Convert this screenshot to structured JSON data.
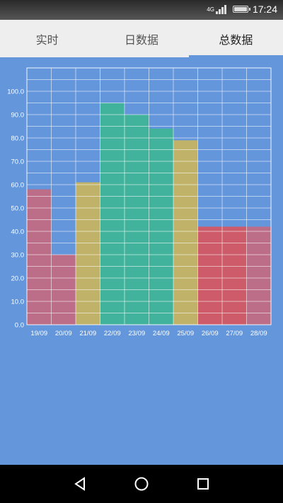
{
  "status": {
    "time": "17:24",
    "network": "4G"
  },
  "tabs": [
    {
      "label": "实时",
      "active": false
    },
    {
      "label": "日数据",
      "active": false
    },
    {
      "label": "总数据",
      "active": true
    }
  ],
  "colors": {
    "background": "#6496DC",
    "tab_bg": "#eeeeee",
    "grid": "#ffffff",
    "red": "#D36367",
    "yellow": "#C8B55E",
    "green": "#3EB495"
  },
  "chart_data": {
    "type": "bar",
    "categories": [
      "19/09",
      "20/09",
      "21/09",
      "22/09",
      "23/09",
      "24/09",
      "25/09",
      "26/09",
      "27/09",
      "28/09"
    ],
    "values": [
      58,
      30,
      61,
      95,
      90,
      84,
      79,
      42,
      42,
      42
    ],
    "bar_colors": [
      "#C36A80",
      "#C36A80",
      "#C8B55E",
      "#3EB495",
      "#3EB495",
      "#3EB495",
      "#C8B55E",
      "#D6565E",
      "#D6565E",
      "#C36A80"
    ],
    "yticks": [
      "0.0",
      "10.0",
      "20.0",
      "30.0",
      "40.0",
      "50.0",
      "60.0",
      "70.0",
      "80.0",
      "90.0",
      "100.0"
    ],
    "ylim": [
      0,
      110
    ],
    "grid": true
  },
  "nav": {
    "back": "back-icon",
    "home": "home-icon",
    "recent": "recent-apps-icon"
  }
}
